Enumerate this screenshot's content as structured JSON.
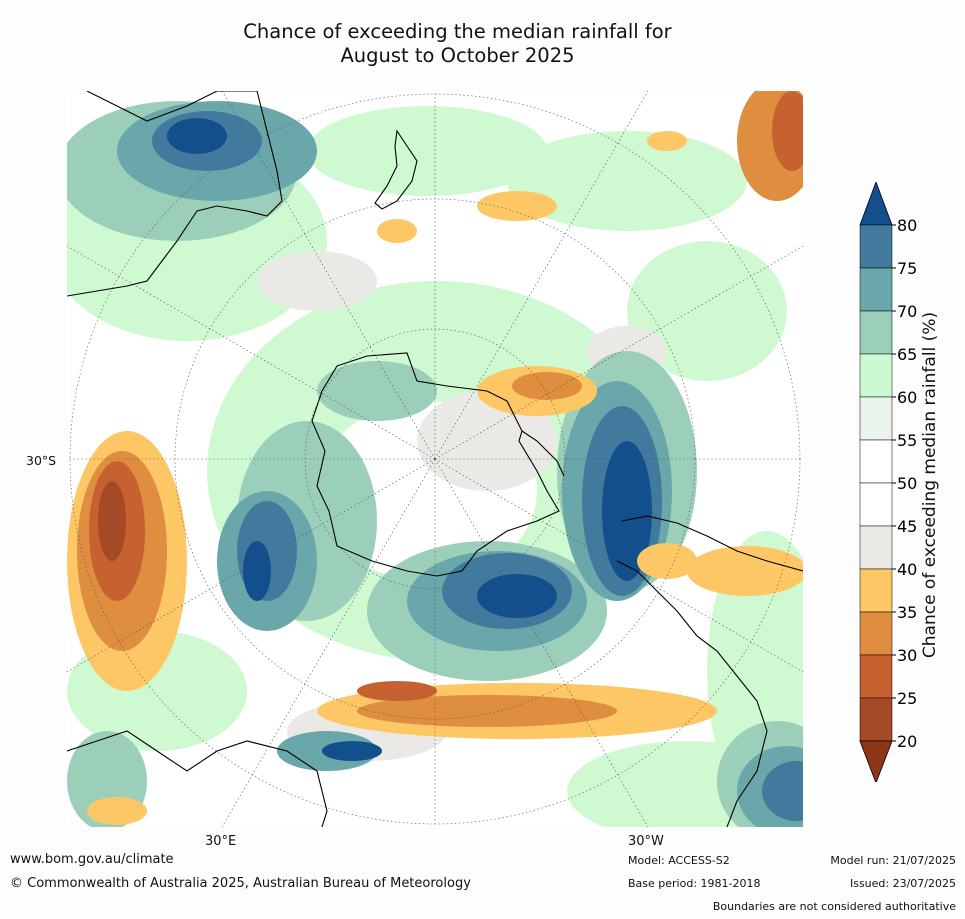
{
  "title_line1": "Chance of exceeding the median rainfall for",
  "title_line2": "August to October 2025",
  "latitude_label": "30°S",
  "longitude_labels": {
    "east": "30°E",
    "west": "30°W"
  },
  "colorbar": {
    "title": "Chance of exceeding median rainfall (%)",
    "ticks": [
      "80",
      "75",
      "70",
      "65",
      "60",
      "55",
      "50",
      "45",
      "40",
      "35",
      "30",
      "25",
      "20"
    ],
    "colors_high_to_low": [
      "#124f8c",
      "#427a9e",
      "#6aa7aa",
      "#9ccfb9",
      "#ccf9cf",
      "#eaf4ea",
      "#ffffff",
      "#ffffff",
      "#ebe9e5",
      "#fdc766",
      "#de8e3e",
      "#c76230",
      "#a54a27",
      "#8e3519"
    ],
    "extend": "both"
  },
  "footer": {
    "website": "www.bom.gov.au/climate",
    "copyright": "© Commonwealth of Australia 2025, Australian Bureau of Meteorology",
    "model": "Model: ACCESS-S2",
    "base_period": "Base period: 1981-2018",
    "model_run": "Model run: 21/07/2025",
    "issued": "Issued: 23/07/2025",
    "disclaimer": "Boundaries are not considered authoritative"
  }
}
